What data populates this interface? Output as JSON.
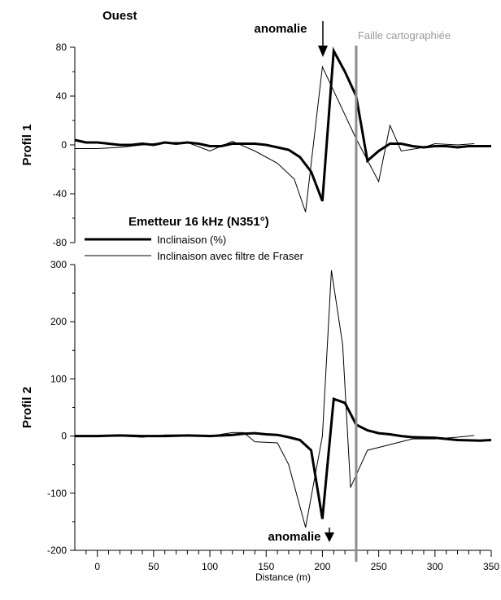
{
  "chart_data": [
    {
      "type": "line",
      "corner_label": "Ouest",
      "ylabel": "Profil 1",
      "ylim": [
        -80,
        80
      ],
      "yticks": [
        -80,
        -40,
        0,
        40,
        80
      ],
      "annotation": "anomalie",
      "fault_label": "Faille cartographiée",
      "series": [
        {
          "name": "Inclinaison (%)",
          "x": [
            -20,
            -10,
            0,
            10,
            20,
            30,
            40,
            50,
            60,
            70,
            80,
            90,
            100,
            110,
            120,
            130,
            140,
            150,
            160,
            170,
            180,
            190,
            200,
            210,
            220,
            230,
            240,
            250,
            260,
            270,
            280,
            290,
            300,
            310,
            320,
            330,
            340,
            350
          ],
          "values": [
            4,
            2,
            2,
            1,
            0,
            0,
            1,
            0,
            2,
            1,
            2,
            1,
            -1,
            -1,
            1,
            1,
            1,
            0,
            -2,
            -4,
            -10,
            -22,
            -46,
            77,
            60,
            40,
            -13,
            -5,
            1,
            1,
            -1,
            -2,
            -1,
            -1,
            -2,
            -1,
            -1,
            -1
          ]
        },
        {
          "name": "Inclinaison avec filtre de Fraser",
          "x": [
            -20,
            0,
            20,
            40,
            60,
            80,
            100,
            120,
            140,
            160,
            175,
            185,
            200,
            230,
            250,
            260,
            270,
            290,
            300,
            320,
            335
          ],
          "values": [
            -3,
            -3,
            -2,
            0,
            2,
            2,
            -5,
            3,
            -5,
            -15,
            -28,
            -55,
            64,
            5,
            -30,
            16,
            -5,
            -2,
            1,
            0,
            1
          ]
        }
      ]
    },
    {
      "type": "line",
      "ylabel": "Profil 2",
      "xlabel": "Distance (m)",
      "ylim": [
        -200,
        300
      ],
      "xlim": [
        -20,
        350
      ],
      "xticks": [
        0,
        50,
        100,
        150,
        200,
        250,
        300,
        350
      ],
      "yticks": [
        -200,
        -100,
        0,
        100,
        200,
        300
      ],
      "annotation": "anomalie",
      "legend_title": "Emetteur 16 kHz (N351°)",
      "series": [
        {
          "name": "Inclinaison (%)",
          "x": [
            -20,
            0,
            20,
            40,
            60,
            80,
            100,
            120,
            130,
            140,
            150,
            160,
            170,
            180,
            190,
            200,
            210,
            220,
            230,
            240,
            250,
            260,
            270,
            280,
            300,
            320,
            340,
            350
          ],
          "values": [
            0,
            0,
            1,
            0,
            0,
            1,
            0,
            2,
            4,
            5,
            3,
            2,
            -2,
            -7,
            -25,
            -145,
            65,
            58,
            20,
            10,
            5,
            3,
            0,
            -2,
            -3,
            -7,
            -8,
            -7
          ]
        },
        {
          "name": "Inclinaison avec filtre de Fraser",
          "x": [
            -20,
            0,
            20,
            40,
            60,
            80,
            100,
            120,
            130,
            140,
            160,
            170,
            185,
            200,
            208,
            218,
            225,
            240,
            260,
            280,
            300,
            320,
            335
          ],
          "values": [
            0,
            0,
            0,
            -2,
            2,
            2,
            0,
            6,
            6,
            -10,
            -12,
            -50,
            -160,
            0,
            290,
            160,
            -90,
            -25,
            -15,
            -5,
            -5,
            -2,
            1
          ]
        }
      ]
    }
  ]
}
